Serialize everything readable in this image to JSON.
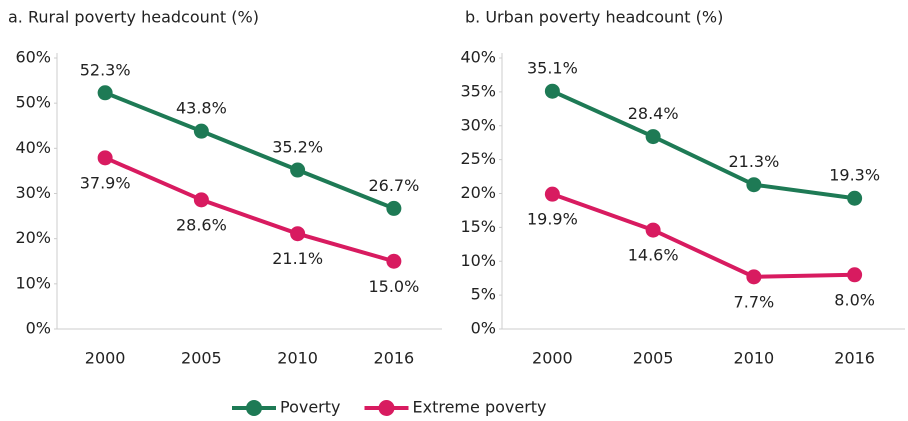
{
  "chart_data": [
    {
      "type": "line",
      "title": "a. Rural poverty headcount (%)",
      "categories": [
        "2000",
        "2005",
        "2010",
        "2016"
      ],
      "series": [
        {
          "name": "Poverty",
          "color": "#1e7a55",
          "values": [
            52.3,
            43.8,
            35.2,
            26.7
          ],
          "value_labels": [
            "52.3%",
            "43.8%",
            "35.2%",
            "26.7%"
          ]
        },
        {
          "name": "Extreme poverty",
          "color": "#d81b60",
          "values": [
            37.9,
            28.6,
            21.1,
            15.0
          ],
          "value_labels": [
            "37.9%",
            "28.6%",
            "21.1%",
            "15.0%"
          ]
        }
      ],
      "ylim": [
        0,
        60
      ],
      "yticks": [
        {
          "value": 0,
          "label": "0%"
        },
        {
          "value": 10,
          "label": "10%"
        },
        {
          "value": 20,
          "label": "20%"
        },
        {
          "value": 30,
          "label": "30%"
        },
        {
          "value": 40,
          "label": "40%"
        },
        {
          "value": 50,
          "label": "50%"
        },
        {
          "value": 60,
          "label": "60%"
        }
      ]
    },
    {
      "type": "line",
      "title": "b. Urban poverty headcount (%)",
      "categories": [
        "2000",
        "2005",
        "2010",
        "2016"
      ],
      "series": [
        {
          "color": "#1e7a55",
          "values": [
            35.1,
            28.4,
            21.3,
            19.3
          ],
          "value_labels": [
            "35.1%",
            "28.4%",
            "21.3%",
            "19.3%"
          ]
        },
        {
          "color": "#d81b60",
          "values": [
            19.9,
            14.6,
            7.7,
            8.0
          ],
          "value_labels": [
            "19.9%",
            "14.6%",
            "7.7%",
            "8.0%"
          ]
        }
      ],
      "ylim": [
        0,
        40
      ],
      "yticks": [
        {
          "value": 0,
          "label": "0%"
        },
        {
          "value": 5,
          "label": "5%"
        },
        {
          "value": 10,
          "label": "10%"
        },
        {
          "value": 15,
          "label": "15%"
        },
        {
          "value": 20,
          "label": "20%"
        },
        {
          "value": 25,
          "label": "25%"
        },
        {
          "value": 30,
          "label": "30%"
        },
        {
          "value": 35,
          "label": "35%"
        },
        {
          "value": 40,
          "label": "40%"
        }
      ]
    }
  ]
}
